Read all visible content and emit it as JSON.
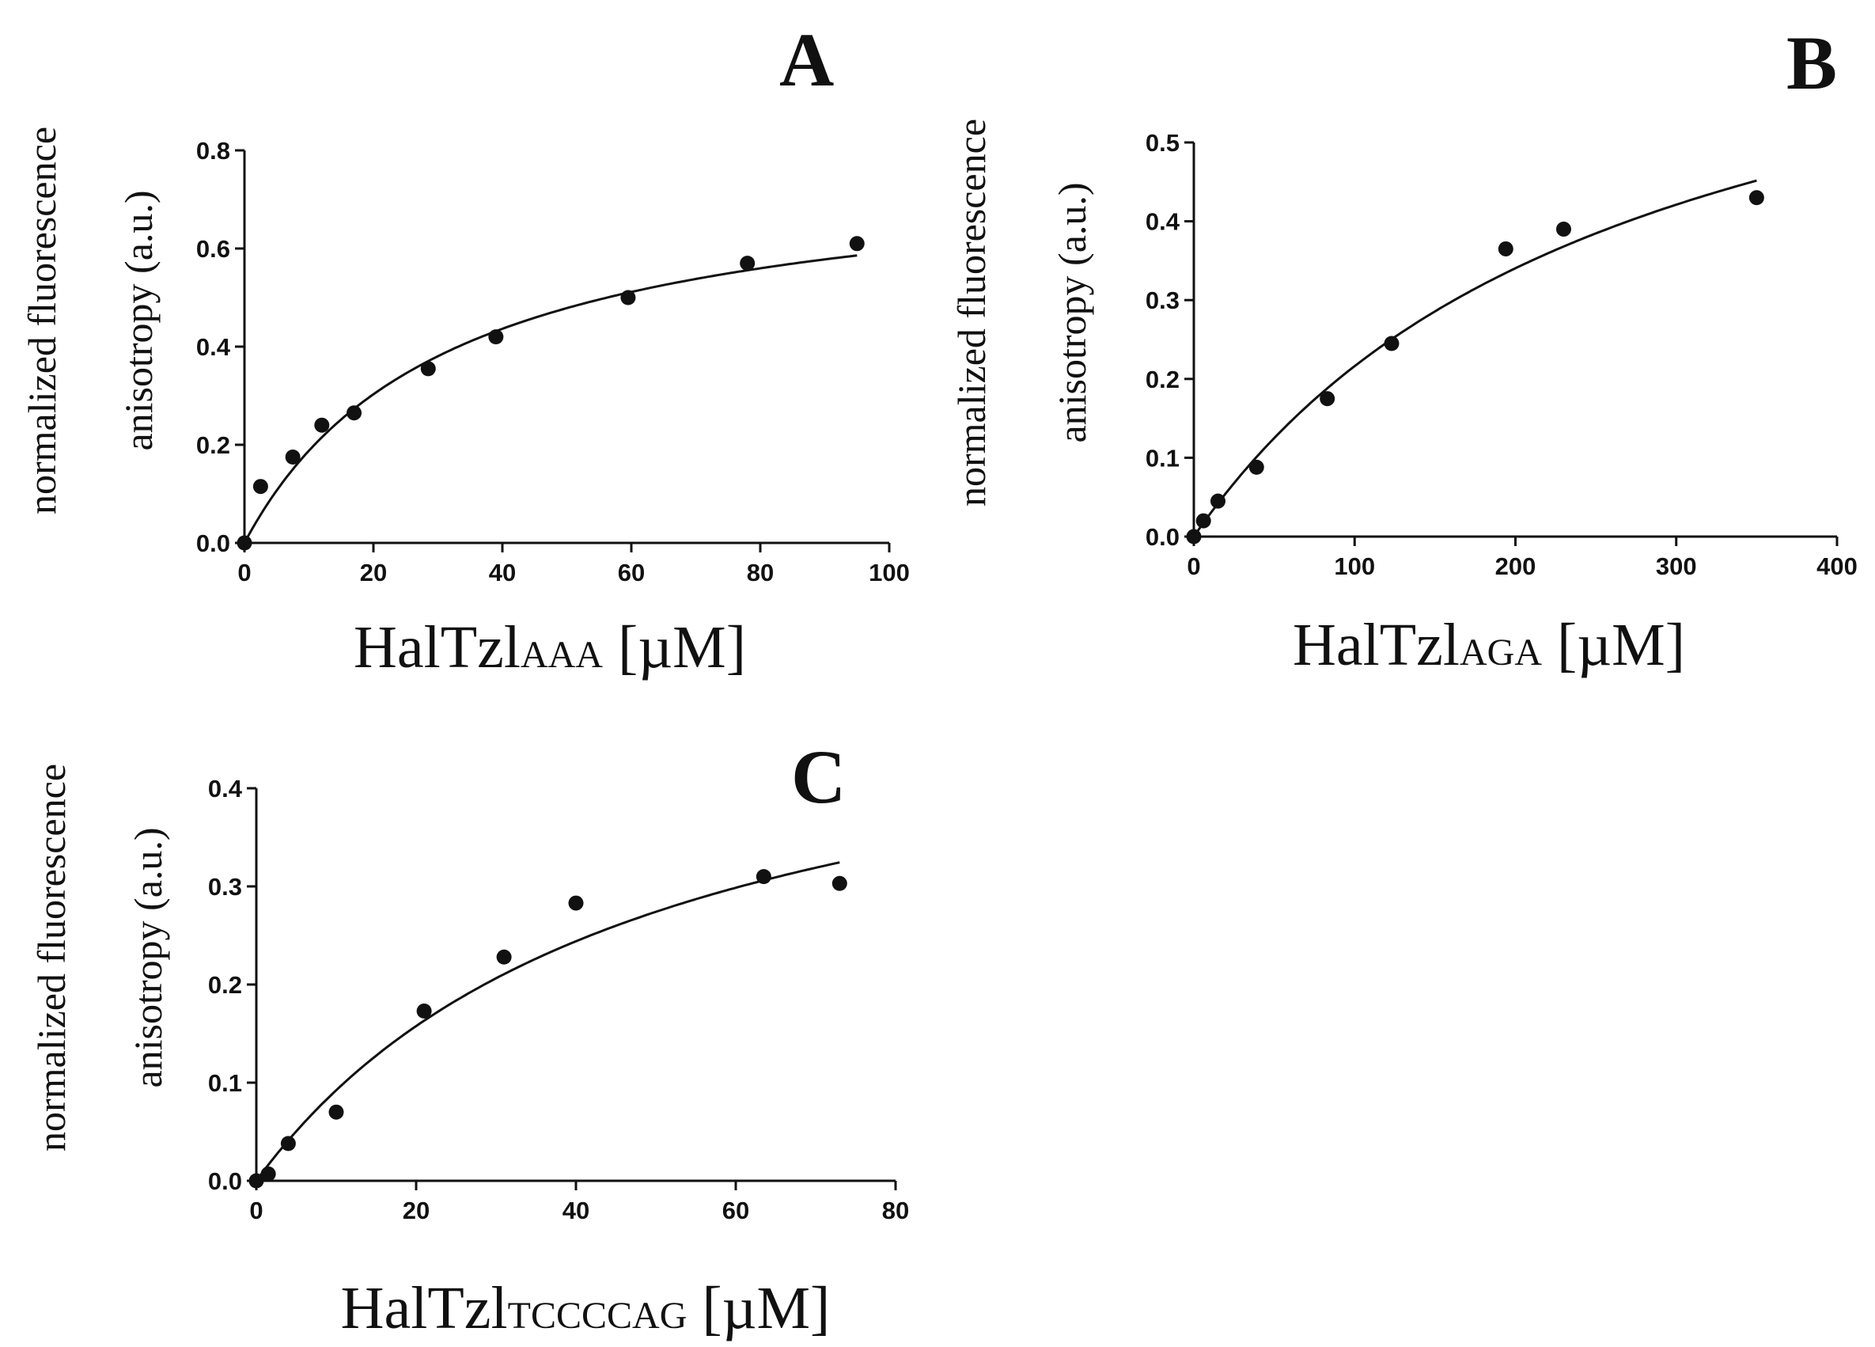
{
  "chart_data": [
    {
      "panel": "A",
      "type": "scatter",
      "ylabel_line1": "normalized fluorescence",
      "ylabel_line2": "anisotropy (a.u.)",
      "xlabel_main": "HalTzl",
      "xlabel_sub": "AAA",
      "xlabel_unit": " [µM]",
      "xlim": [
        0,
        100
      ],
      "ylim": [
        0,
        0.8
      ],
      "xticks": [
        0,
        20,
        40,
        60,
        80,
        100
      ],
      "yticks": [
        0.0,
        0.2,
        0.4,
        0.6,
        0.8
      ],
      "points": [
        {
          "x": 0,
          "y": 0.0
        },
        {
          "x": 2.5,
          "y": 0.115
        },
        {
          "x": 7.5,
          "y": 0.175
        },
        {
          "x": 12,
          "y": 0.24
        },
        {
          "x": 17,
          "y": 0.265
        },
        {
          "x": 28.5,
          "y": 0.355
        },
        {
          "x": 39,
          "y": 0.42
        },
        {
          "x": 59.5,
          "y": 0.5
        },
        {
          "x": 78,
          "y": 0.57
        },
        {
          "x": 95,
          "y": 0.61
        }
      ],
      "fit": {
        "model": "hyperbolic",
        "bmax": 0.78,
        "kd": 31.5,
        "xmax": 95
      }
    },
    {
      "panel": "B",
      "type": "scatter",
      "ylabel_line1": "normalized fluorescence",
      "ylabel_line2": "anisotropy (a.u.)",
      "xlabel_main": "HalTzl",
      "xlabel_sub": "AGA",
      "xlabel_unit": " [µM]",
      "xlim": [
        0,
        400
      ],
      "ylim": [
        0,
        0.5
      ],
      "xticks": [
        0,
        100,
        200,
        300,
        400
      ],
      "yticks": [
        0.0,
        0.1,
        0.2,
        0.3,
        0.4,
        0.5
      ],
      "points": [
        {
          "x": 0,
          "y": 0.0
        },
        {
          "x": 6,
          "y": 0.02
        },
        {
          "x": 15,
          "y": 0.045
        },
        {
          "x": 39,
          "y": 0.088
        },
        {
          "x": 83,
          "y": 0.175
        },
        {
          "x": 123,
          "y": 0.245
        },
        {
          "x": 194,
          "y": 0.365
        },
        {
          "x": 230,
          "y": 0.39
        },
        {
          "x": 350,
          "y": 0.43
        }
      ],
      "fit": {
        "model": "hyperbolic",
        "bmax": 0.8,
        "kd": 270,
        "xmax": 350
      }
    },
    {
      "panel": "C",
      "type": "scatter",
      "ylabel_line1": "normalized fluorescence",
      "ylabel_line2": "anisotropy (a.u.)",
      "xlabel_main": "HalTzl",
      "xlabel_sub": "TCCCCAG",
      "xlabel_unit": " [µM]",
      "xlim": [
        0,
        80
      ],
      "ylim": [
        0,
        0.4
      ],
      "xticks": [
        0,
        20,
        40,
        60,
        80
      ],
      "yticks": [
        0.0,
        0.1,
        0.2,
        0.3,
        0.4
      ],
      "points": [
        {
          "x": 0,
          "y": 0.0
        },
        {
          "x": 1.5,
          "y": 0.007
        },
        {
          "x": 4,
          "y": 0.038
        },
        {
          "x": 10,
          "y": 0.07
        },
        {
          "x": 21,
          "y": 0.173
        },
        {
          "x": 31,
          "y": 0.228
        },
        {
          "x": 40,
          "y": 0.283
        },
        {
          "x": 63.5,
          "y": 0.31
        },
        {
          "x": 73,
          "y": 0.303
        }
      ],
      "fit": {
        "model": "hyperbolic",
        "bmax": 0.54,
        "kd": 48.5,
        "xmax": 73
      }
    }
  ]
}
